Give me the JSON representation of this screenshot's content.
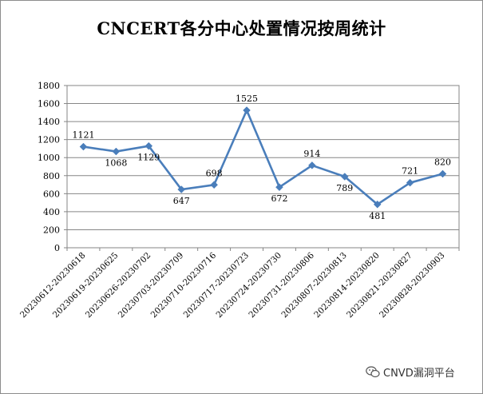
{
  "chart_data": {
    "type": "line",
    "title": "CNCERT各分中心处置情况按周统计",
    "xlabel": "",
    "ylabel": "",
    "ylim": [
      0,
      1800
    ],
    "yticks": [
      0,
      200,
      400,
      600,
      800,
      1000,
      1200,
      1400,
      1600,
      1800
    ],
    "grid": true,
    "legend": "none",
    "categories": [
      "20230612-20230618",
      "20230619-20230625",
      "20230626-20230702",
      "20230703-20230709",
      "20230710-20230716",
      "20230717-20230723",
      "20230724-20230730",
      "20230731-20230806",
      "20230807-20230813",
      "20230814-20230820",
      "20230821-20230827",
      "20230828-20230903"
    ],
    "series": [
      {
        "values": [
          1121,
          1068,
          1129,
          647,
          698,
          1525,
          672,
          914,
          789,
          481,
          721,
          820
        ],
        "labels": [
          "1121",
          "1068",
          "1129",
          "647",
          "698",
          "1525",
          "672",
          "914",
          "789",
          "481",
          "721",
          "820"
        ],
        "color": "#4a7ebb"
      }
    ]
  },
  "watermark": {
    "icon": "wechat-icon",
    "text": "CNVD漏洞平台"
  }
}
